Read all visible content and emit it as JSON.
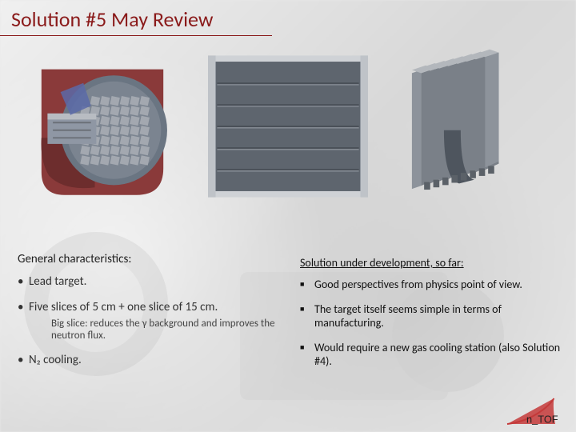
{
  "title": "Solution #5 May Review",
  "left": {
    "heading": "General characteristics:",
    "items": [
      {
        "text": "Lead target."
      },
      {
        "text": "Five slices of 5 cm + one slice of 15 cm.",
        "sub": "Big slice: reduces the γ background and improves the neutron flux."
      },
      {
        "text": "N₂ cooling."
      }
    ]
  },
  "right": {
    "heading": "Solution under development, so far:",
    "items": [
      "Good perspectives from physics point of view.",
      "The target itself seems simple in terms of manufacturing.",
      "Would require a new gas cooling station (also Solution #4)."
    ]
  },
  "logo_text": "n_TOF",
  "figures": {
    "cutaway": {
      "housing_color": "#8a3a3a",
      "insert_color": "#8f97a4",
      "window_color": "#6a7582",
      "slice_color": "#a8adb4"
    },
    "panel": {
      "frame_color": "#cfd2d6",
      "fill_color": "#5e656e",
      "seam_color": "#4a5058",
      "seam_count": 5
    },
    "block": {
      "top_color": "#b3b7bc",
      "front_color": "#8d939b",
      "side_color": "#7a8088",
      "slot_color": "#4e555e",
      "slab_count": 8
    }
  }
}
